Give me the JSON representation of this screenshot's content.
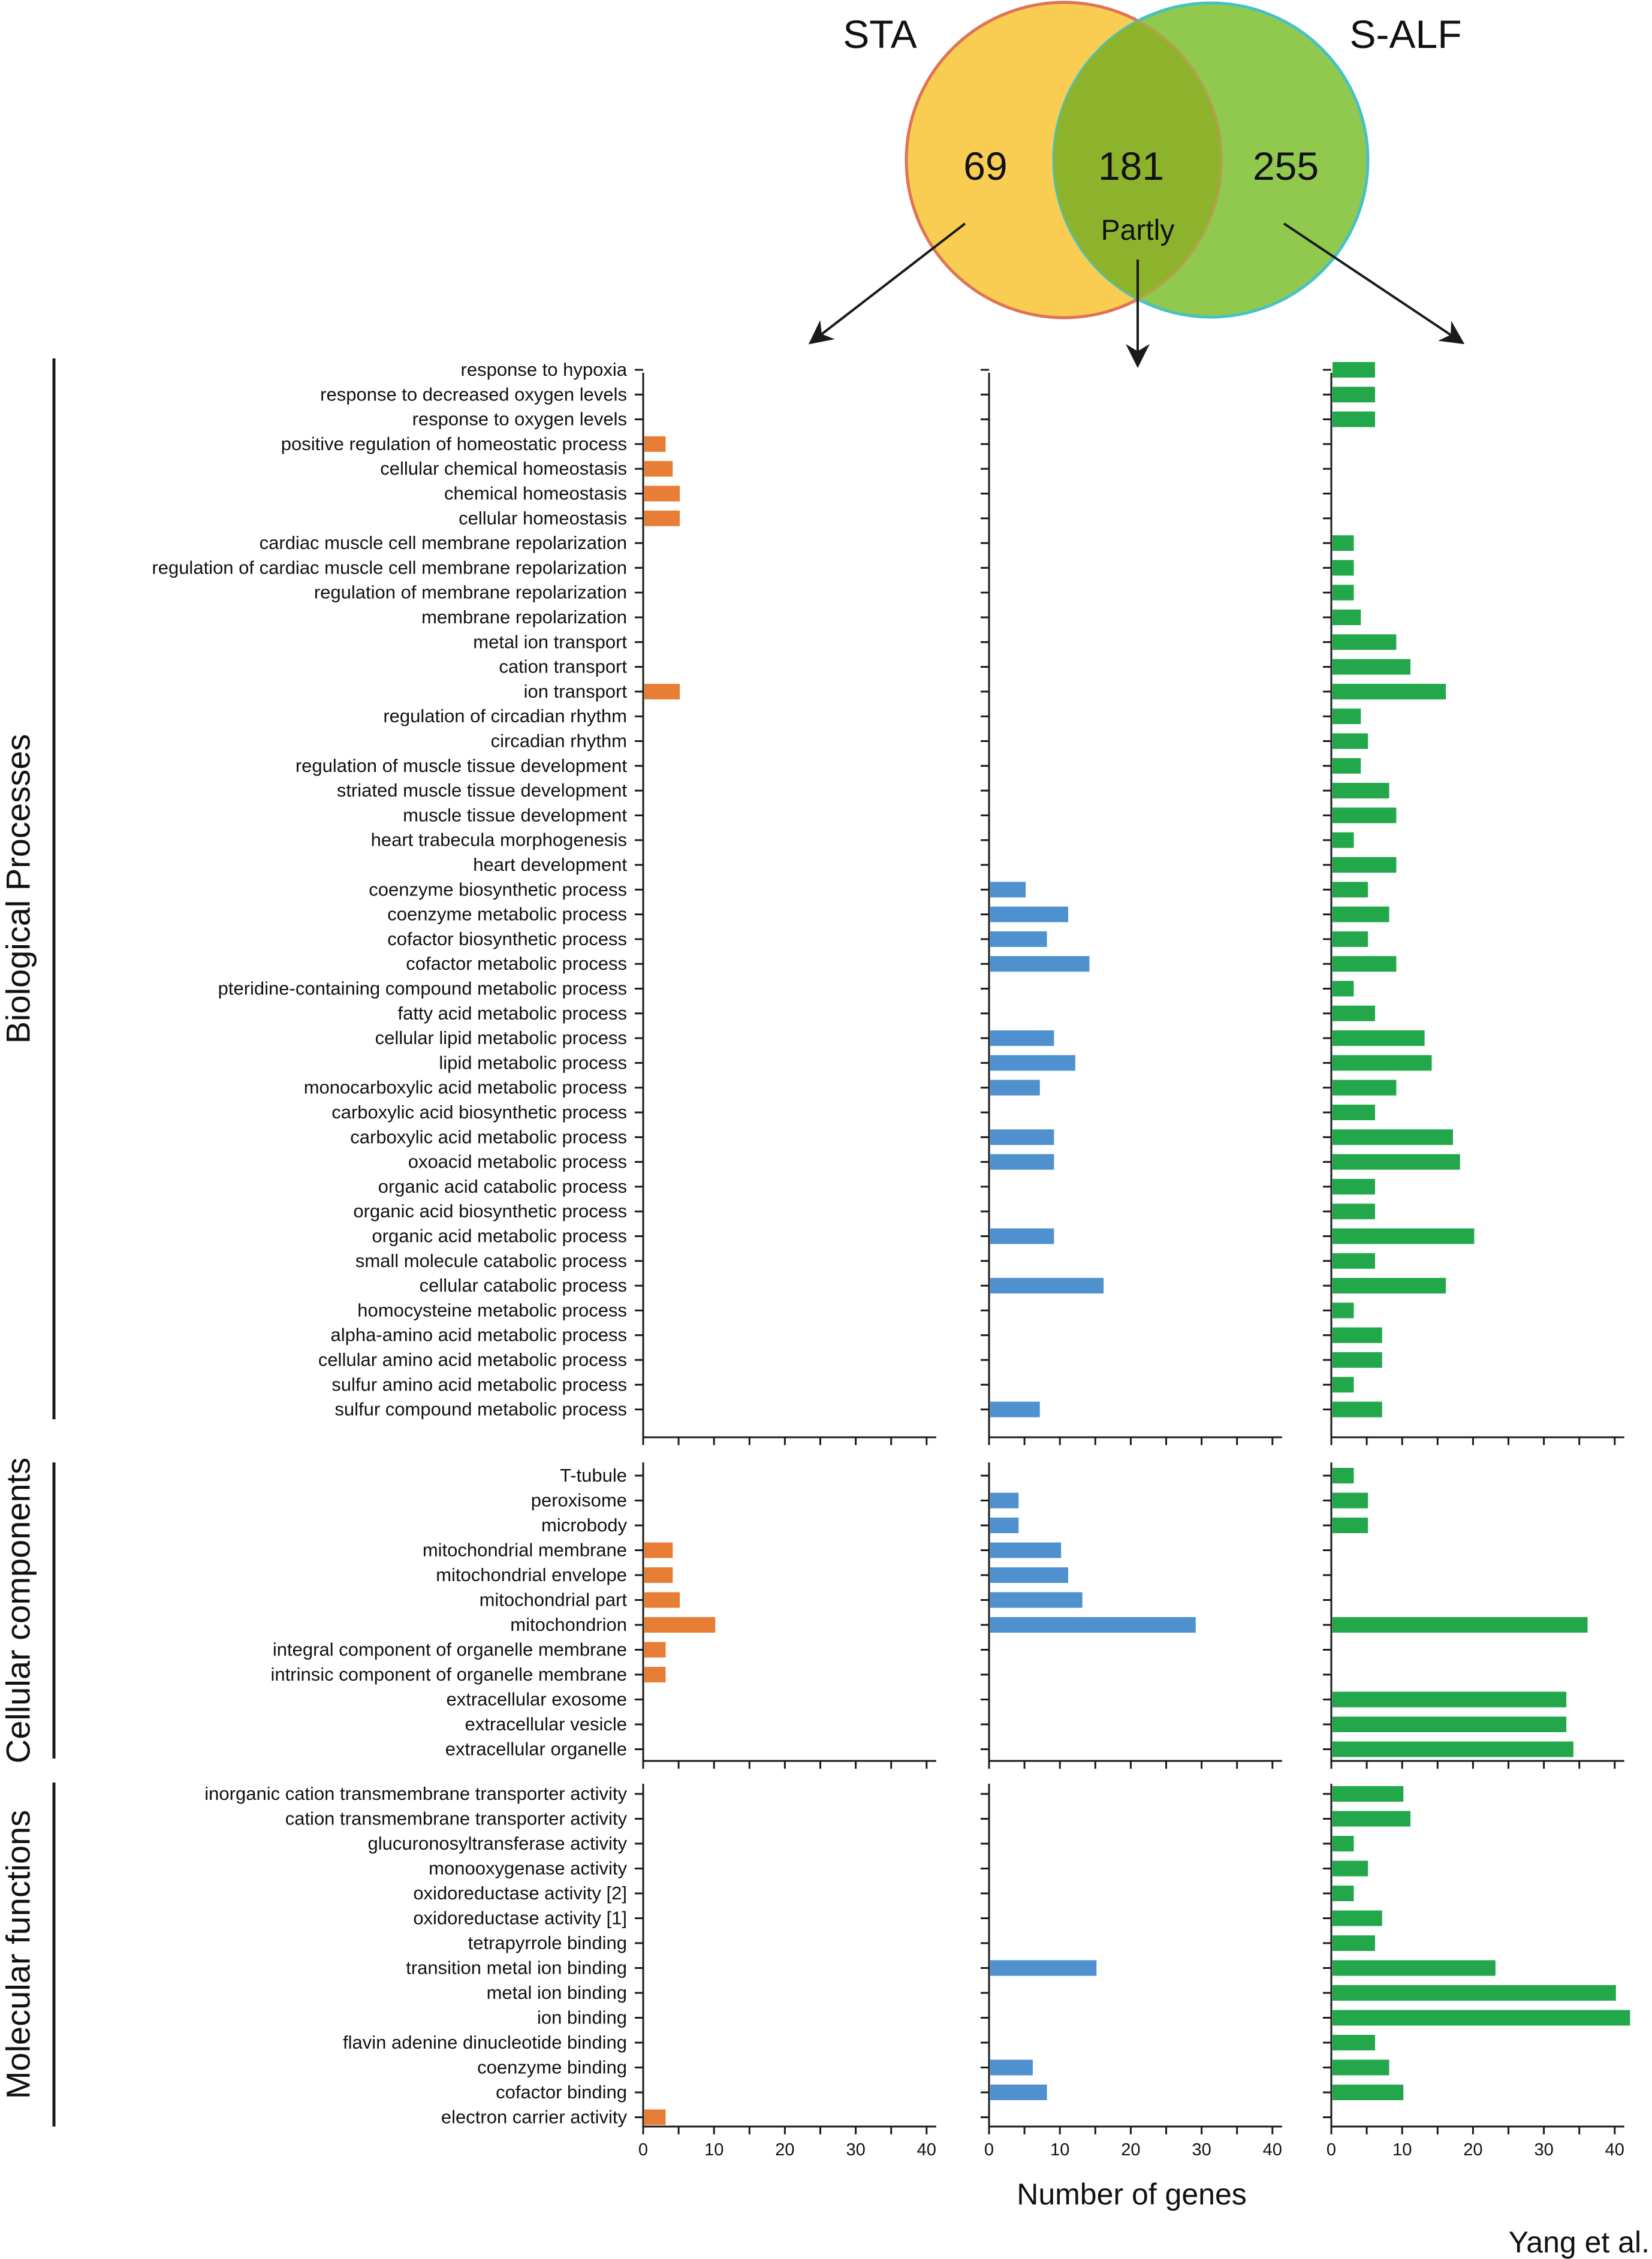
{
  "venn": {
    "set_a": "STA",
    "set_b": "S-ALF",
    "count_a_only": "69",
    "count_both": "181",
    "count_b_only": "255",
    "partly_label": "Partly",
    "color_a": "#f8cd52",
    "color_b": "#90c94e",
    "color_overlap": "#8db32c",
    "stroke_a": "#e07256",
    "stroke_b": "#46c2c4"
  },
  "x_axis_label": "Number of genes",
  "credit": "Yang et al.",
  "chart_data": {
    "type": "bar",
    "orientation": "horizontal",
    "xlim": [
      0,
      40
    ],
    "xticks": [
      "0",
      "10",
      "20",
      "30",
      "40"
    ],
    "xlabel": "Number of genes",
    "panels": [
      {
        "name": "STA",
        "color": "#e87d35"
      },
      {
        "name": "Partly",
        "color": "#4f90cf"
      },
      {
        "name": "S-ALF",
        "color": "#22a84b"
      }
    ],
    "groups": [
      {
        "name": "Biological Processes",
        "categories": [
          "response to hypoxia",
          "response to decreased oxygen levels",
          "response to oxygen levels",
          "positive regulation of homeostatic process",
          "cellular chemical homeostasis",
          "chemical homeostasis",
          "cellular homeostasis",
          "cardiac muscle cell membrane repolarization",
          "regulation of cardiac muscle cell membrane repolarization",
          "regulation of membrane repolarization",
          "membrane repolarization",
          "metal ion transport",
          "cation transport",
          "ion transport",
          "regulation of circadian rhythm",
          "circadian rhythm",
          "regulation of muscle tissue development",
          "striated muscle tissue development",
          "muscle tissue development",
          "heart trabecula morphogenesis",
          "heart development",
          "coenzyme biosynthetic process",
          "coenzyme metabolic process",
          "cofactor biosynthetic process",
          "cofactor metabolic process",
          "pteridine-containing compound metabolic process",
          "fatty acid metabolic process",
          "cellular lipid metabolic process",
          "lipid metabolic process",
          "monocarboxylic acid metabolic process",
          "carboxylic acid biosynthetic process",
          "carboxylic acid metabolic process",
          "oxoacid metabolic process",
          "organic acid catabolic process",
          "organic acid biosynthetic process",
          "organic acid metabolic process",
          "small molecule catabolic process",
          "cellular catabolic process",
          "homocysteine metabolic process",
          "alpha-amino acid metabolic process",
          "cellular amino acid metabolic process",
          "sulfur amino acid metabolic process",
          "sulfur compound metabolic process"
        ],
        "series": [
          {
            "name": "STA",
            "values": [
              0,
              0,
              0,
              3,
              4,
              5,
              5,
              0,
              0,
              0,
              0,
              0,
              0,
              5,
              0,
              0,
              0,
              0,
              0,
              0,
              0,
              0,
              0,
              0,
              0,
              0,
              0,
              0,
              0,
              0,
              0,
              0,
              0,
              0,
              0,
              0,
              0,
              0,
              0,
              0,
              0,
              0,
              0
            ]
          },
          {
            "name": "Partly",
            "values": [
              0,
              0,
              0,
              0,
              0,
              0,
              0,
              0,
              0,
              0,
              0,
              0,
              0,
              0,
              0,
              0,
              0,
              0,
              0,
              0,
              0,
              5,
              11,
              8,
              14,
              0,
              0,
              9,
              12,
              7,
              0,
              9,
              9,
              0,
              0,
              9,
              0,
              16,
              0,
              0,
              0,
              0,
              7
            ]
          },
          {
            "name": "S-ALF",
            "values": [
              6,
              6,
              6,
              0,
              0,
              0,
              0,
              3,
              3,
              3,
              4,
              9,
              11,
              16,
              4,
              5,
              4,
              8,
              9,
              3,
              9,
              5,
              8,
              5,
              9,
              3,
              6,
              13,
              14,
              9,
              6,
              17,
              18,
              6,
              6,
              20,
              6,
              16,
              3,
              7,
              7,
              3,
              7
            ]
          }
        ]
      },
      {
        "name": "Cellular components",
        "categories": [
          "T-tubule",
          "peroxisome",
          "microbody",
          "mitochondrial membrane",
          "mitochondrial envelope",
          "mitochondrial part",
          "mitochondrion",
          "integral component of organelle membrane",
          "intrinsic component of organelle membrane",
          "extracellular exosome",
          "extracellular vesicle",
          "extracellular organelle"
        ],
        "series": [
          {
            "name": "STA",
            "values": [
              0,
              0,
              0,
              4,
              4,
              5,
              10,
              3,
              3,
              0,
              0,
              0
            ]
          },
          {
            "name": "Partly",
            "values": [
              0,
              4,
              4,
              10,
              11,
              13,
              29,
              0,
              0,
              0,
              0,
              0
            ]
          },
          {
            "name": "S-ALF",
            "values": [
              3,
              5,
              5,
              0,
              0,
              0,
              36,
              0,
              0,
              33,
              33,
              34
            ]
          }
        ]
      },
      {
        "name": "Molecular functions",
        "categories": [
          "inorganic cation transmembrane transporter activity",
          "cation transmembrane transporter activity",
          "glucuronosyltransferase activity",
          "monooxygenase activity",
          "oxidoreductase activity [2]",
          "oxidoreductase activity [1]",
          "tetrapyrrole binding",
          "transition metal ion binding",
          "metal ion binding",
          "ion binding",
          "flavin adenine dinucleotide binding",
          "coenzyme binding",
          "cofactor binding",
          "electron carrier activity"
        ],
        "series": [
          {
            "name": "STA",
            "values": [
              0,
              0,
              0,
              0,
              0,
              0,
              0,
              0,
              0,
              0,
              0,
              0,
              0,
              3
            ]
          },
          {
            "name": "Partly",
            "values": [
              0,
              0,
              0,
              0,
              0,
              0,
              0,
              15,
              0,
              0,
              0,
              6,
              8,
              0
            ]
          },
          {
            "name": "S-ALF",
            "values": [
              10,
              11,
              3,
              5,
              3,
              7,
              6,
              23,
              40,
              42,
              6,
              8,
              10,
              0
            ]
          }
        ]
      }
    ]
  }
}
